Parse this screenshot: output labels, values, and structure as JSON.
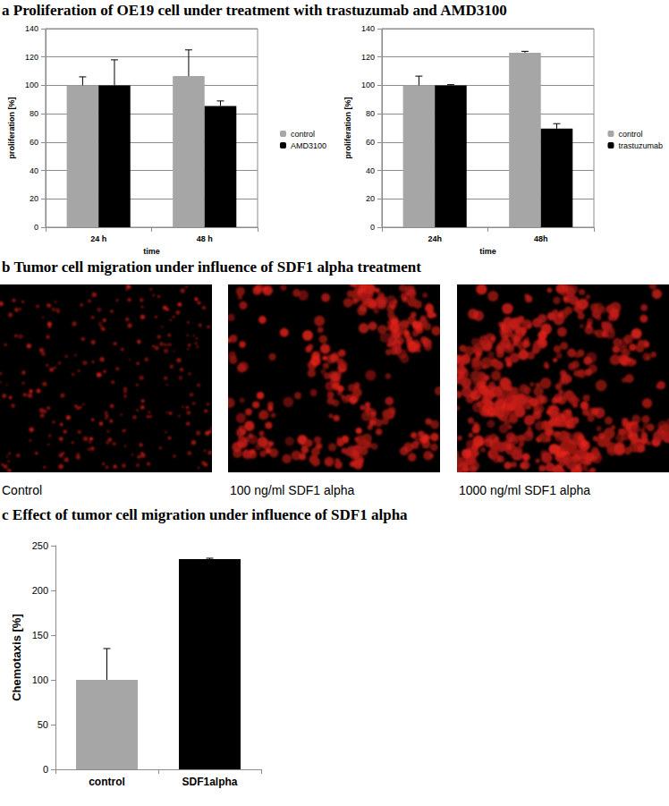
{
  "figure": {
    "panels": [
      {
        "title": "a Proliferation of OE19 cell under treatment with trastuzumab and AMD3100"
      },
      {
        "title": "b Tumor cell migration under influence of SDF1 alpha treatment",
        "images": [
          "Control",
          "100 ng/ml SDF1 alpha",
          "1000 ng/ml SDF1 alpha"
        ]
      },
      {
        "title": "c Effect of tumor cell migration under influence of SDF1 alpha"
      }
    ]
  },
  "chart_data": [
    {
      "type": "bar",
      "categories": [
        "24 h",
        "48 h"
      ],
      "series": [
        {
          "name": "control",
          "color": "#a6a6a6",
          "values": [
            100,
            106.5
          ],
          "errors": [
            6,
            18.5
          ]
        },
        {
          "name": "AMD3100",
          "color": "#000000",
          "values": [
            100,
            85.5
          ],
          "errors": [
            18,
            3.5
          ]
        }
      ],
      "xlabel": "time",
      "ylabel": "proliferation [%]",
      "ylim": [
        0,
        140
      ],
      "yticks": [
        0,
        20,
        40,
        60,
        80,
        100,
        120,
        140
      ],
      "grid": true,
      "legend": "right"
    },
    {
      "type": "bar",
      "categories": [
        "24h",
        "48h"
      ],
      "series": [
        {
          "name": "control",
          "color": "#a6a6a6",
          "values": [
            100,
            123
          ],
          "errors": [
            6.5,
            1
          ]
        },
        {
          "name": "trastuzumab",
          "color": "#000000",
          "values": [
            100,
            69.5
          ],
          "errors": [
            0.5,
            3.5
          ]
        }
      ],
      "xlabel": "time",
      "ylabel": "proliferation [%]",
      "ylim": [
        0,
        140
      ],
      "yticks": [
        0,
        20,
        40,
        60,
        80,
        100,
        120,
        140
      ],
      "grid": true,
      "legend": "right"
    },
    {
      "type": "bar",
      "categories": [
        "control",
        "SDF1alpha"
      ],
      "values": [
        100,
        235
      ],
      "errors": [
        35,
        1
      ],
      "colors": [
        "#a6a6a6",
        "#000000"
      ],
      "ylabel": "Chemotaxis [%]",
      "ylim": [
        0,
        250
      ],
      "yticks": [
        0,
        50,
        100,
        150,
        200,
        250
      ],
      "grid": false
    }
  ]
}
